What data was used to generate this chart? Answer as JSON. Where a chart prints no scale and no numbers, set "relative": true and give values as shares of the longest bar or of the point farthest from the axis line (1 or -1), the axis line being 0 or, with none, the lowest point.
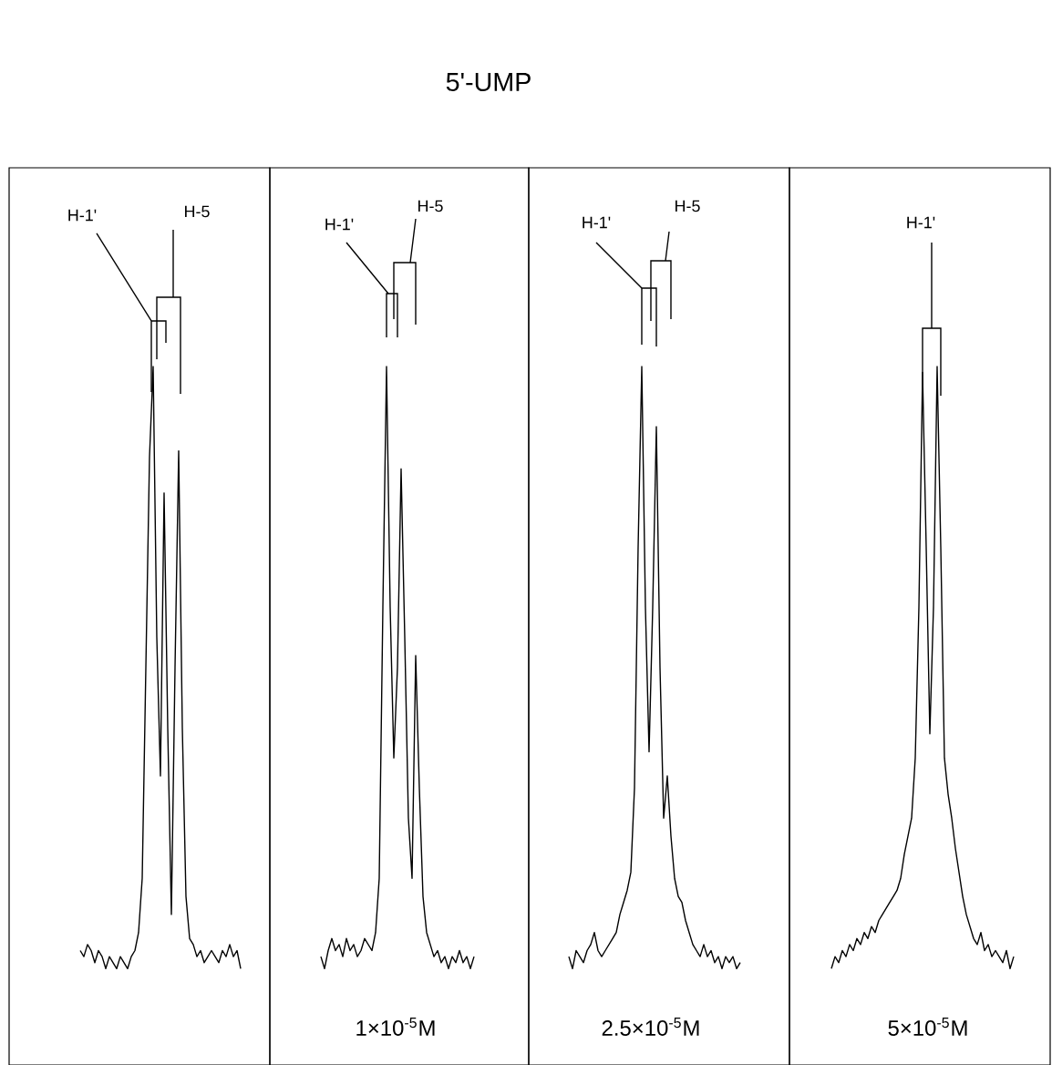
{
  "chart_data": [
    {
      "type": "line",
      "relative": true,
      "color": "#000000",
      "annotations": [
        "H-1'",
        "H-5"
      ],
      "categories": [
        null,
        null,
        null,
        null,
        null,
        null,
        null,
        null,
        null,
        null,
        null,
        null,
        null,
        null,
        null,
        null,
        null,
        null,
        null,
        null,
        null,
        null,
        null,
        null,
        null,
        null,
        null,
        null,
        null,
        null,
        null,
        null,
        null,
        null,
        null,
        null,
        null,
        null,
        null,
        null,
        null,
        null,
        null,
        null,
        null
      ],
      "values": [
        0.03,
        0.02,
        0.04,
        0.03,
        0.01,
        0.03,
        0.02,
        0.0,
        0.02,
        0.01,
        0.0,
        0.02,
        0.01,
        0.0,
        0.02,
        0.03,
        0.06,
        0.15,
        0.5,
        0.85,
        1.0,
        0.55,
        0.32,
        0.79,
        0.4,
        0.09,
        0.5,
        0.86,
        0.4,
        0.12,
        0.05,
        0.04,
        0.02,
        0.03,
        0.01,
        0.02,
        0.03,
        0.02,
        0.01,
        0.03,
        0.02,
        0.04,
        0.02,
        0.03,
        0.0
      ]
    },
    {
      "type": "line",
      "title": "5'-UMP",
      "relative": true,
      "color": "#000000",
      "annotations": [
        "H-1'",
        "H-5",
        "1×10$^{-5}$M"
      ],
      "categories": [
        null,
        null,
        null,
        null,
        null,
        null,
        null,
        null,
        null,
        null,
        null,
        null,
        null,
        null,
        null,
        null,
        null,
        null,
        null,
        null,
        null,
        null,
        null,
        null,
        null,
        null,
        null,
        null,
        null,
        null,
        null,
        null,
        null,
        null,
        null,
        null,
        null,
        null,
        null,
        null,
        null,
        null,
        null
      ],
      "values": [
        0.02,
        0.0,
        0.03,
        0.05,
        0.03,
        0.04,
        0.02,
        0.05,
        0.03,
        0.04,
        0.02,
        0.03,
        0.05,
        0.04,
        0.03,
        0.06,
        0.15,
        0.6,
        1.0,
        0.6,
        0.35,
        0.5,
        0.83,
        0.55,
        0.25,
        0.15,
        0.52,
        0.3,
        0.12,
        0.06,
        0.04,
        0.02,
        0.03,
        0.01,
        0.02,
        0.0,
        0.02,
        0.01,
        0.03,
        0.01,
        0.02,
        0.0,
        0.02
      ]
    },
    {
      "type": "line",
      "relative": true,
      "color": "#000000",
      "annotations": [
        "H-1'",
        "H-5",
        "2.5×10$^{-5}$M"
      ],
      "categories": [
        null,
        null,
        null,
        null,
        null,
        null,
        null,
        null,
        null,
        null,
        null,
        null,
        null,
        null,
        null,
        null,
        null,
        null,
        null,
        null,
        null,
        null,
        null,
        null,
        null,
        null,
        null,
        null,
        null,
        null,
        null,
        null,
        null,
        null,
        null,
        null,
        null,
        null,
        null,
        null,
        null,
        null,
        null,
        null,
        null,
        null,
        null,
        null
      ],
      "values": [
        0.02,
        0.0,
        0.03,
        0.02,
        0.01,
        0.03,
        0.04,
        0.06,
        0.03,
        0.02,
        0.03,
        0.04,
        0.05,
        0.06,
        0.09,
        0.11,
        0.13,
        0.16,
        0.3,
        0.7,
        1.0,
        0.6,
        0.36,
        0.6,
        0.9,
        0.5,
        0.25,
        0.32,
        0.22,
        0.15,
        0.12,
        0.11,
        0.08,
        0.06,
        0.04,
        0.03,
        0.02,
        0.04,
        0.02,
        0.03,
        0.01,
        0.02,
        0.0,
        0.02,
        0.01,
        0.02,
        0.0,
        0.01
      ]
    },
    {
      "type": "line",
      "relative": true,
      "color": "#000000",
      "annotations": [
        "H-1'",
        "5×10$^{-5}$M"
      ],
      "categories": [
        null,
        null,
        null,
        null,
        null,
        null,
        null,
        null,
        null,
        null,
        null,
        null,
        null,
        null,
        null,
        null,
        null,
        null,
        null,
        null,
        null,
        null,
        null,
        null,
        null,
        null,
        null,
        null,
        null,
        null,
        null,
        null,
        null,
        null,
        null,
        null,
        null,
        null,
        null,
        null,
        null,
        null,
        null,
        null,
        null,
        null,
        null,
        null,
        null,
        null,
        null
      ],
      "values": [
        0.0,
        0.02,
        0.01,
        0.03,
        0.02,
        0.04,
        0.03,
        0.05,
        0.04,
        0.06,
        0.05,
        0.07,
        0.06,
        0.08,
        0.09,
        0.1,
        0.11,
        0.12,
        0.13,
        0.15,
        0.19,
        0.22,
        0.25,
        0.35,
        0.6,
        0.99,
        0.7,
        0.39,
        0.6,
        1.0,
        0.7,
        0.35,
        0.29,
        0.25,
        0.2,
        0.16,
        0.12,
        0.09,
        0.07,
        0.05,
        0.04,
        0.06,
        0.03,
        0.04,
        0.02,
        0.03,
        0.02,
        0.01,
        0.03,
        0.0,
        0.02
      ]
    }
  ]
}
